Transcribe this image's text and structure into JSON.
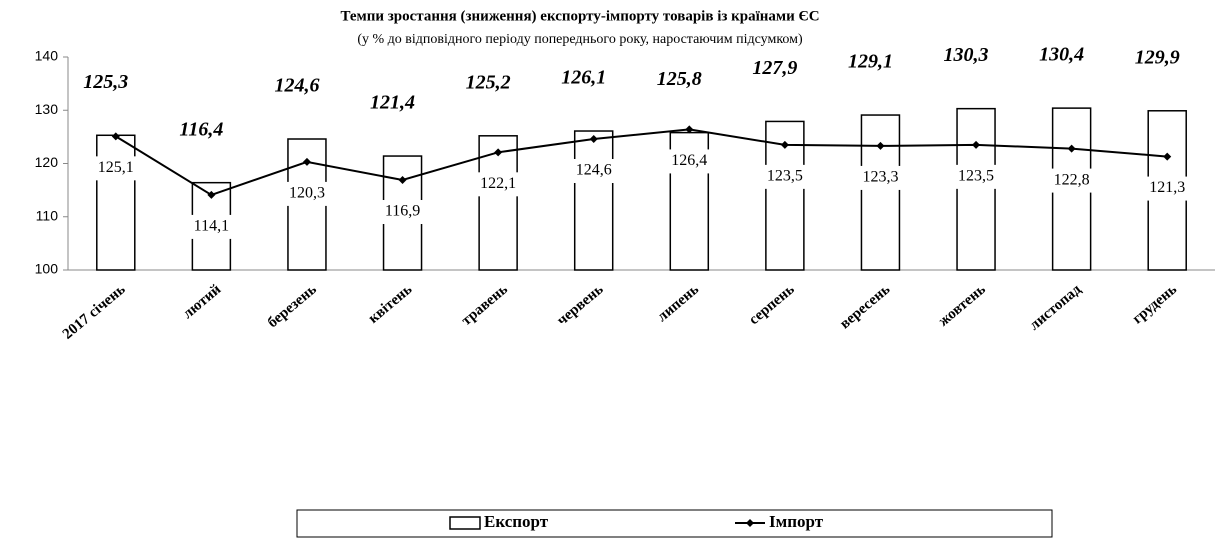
{
  "chart_data": {
    "type": "bar",
    "title": "Темпи зростання (зниження) експорту-імпорту товарів із країнами ЄС",
    "subtitle": "(у % до відповідного періоду попереднього року, наростаючим підсумком)",
    "categories": [
      "2017 січень",
      "лютий",
      "березень",
      "квітень",
      "травень",
      "червень",
      "липень",
      "серпень",
      "вересень",
      "жовтень",
      "листопад",
      "грудень"
    ],
    "series": [
      {
        "name": "Експорт",
        "type": "bar",
        "color": "#ffffff",
        "values": [
          125.3,
          116.4,
          124.6,
          121.4,
          125.2,
          126.1,
          125.8,
          127.9,
          129.1,
          130.3,
          130.4,
          129.9
        ],
        "value_labels": [
          "125,3",
          "116,4",
          "124,6",
          "121,4",
          "125,2",
          "126,1",
          "125,8",
          "127,9",
          "129,1",
          "130,3",
          "130,4",
          "129,9"
        ]
      },
      {
        "name": "Імпорт",
        "type": "line",
        "color": "#000000",
        "values": [
          125.1,
          114.1,
          120.3,
          116.9,
          122.1,
          124.6,
          126.4,
          123.5,
          123.3,
          123.5,
          122.8,
          121.3
        ],
        "value_labels": [
          "125,1",
          "114,1",
          "120,3",
          "116,9",
          "122,1",
          "124,6",
          "126,4",
          "123,5",
          "123,3",
          "123,5",
          "122,8",
          "121,3"
        ]
      }
    ],
    "ylim": [
      100,
      140
    ],
    "yticks": [
      100,
      110,
      120,
      130,
      140
    ],
    "grid": false,
    "legend": "bottom"
  }
}
